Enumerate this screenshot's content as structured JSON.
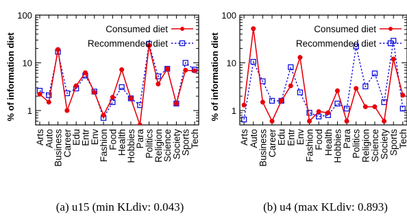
{
  "chart_data": [
    {
      "type": "line",
      "panel": "(a)",
      "caption": "(a)  u15 (min KLdiv: 0.043)",
      "ylabel": "% of information diet",
      "yscale": "log",
      "ylim": [
        0.5,
        100
      ],
      "yticks": [
        "1",
        "10",
        "100"
      ],
      "categories": [
        "Arts",
        "Auto",
        "Business",
        "Career",
        "Edu",
        "Entr",
        "Env",
        "Fashion",
        "Food",
        "Health",
        "Hobbies",
        "Para",
        "Politics",
        "Religion",
        "Science",
        "Society",
        "Sports",
        "Tech"
      ],
      "legend_position": "top-right",
      "series": [
        {
          "name": "Consumed diet",
          "color": "#e8000b",
          "style": "solid",
          "marker": "circle",
          "values": [
            2.2,
            1.5,
            19,
            1.0,
            3.3,
            6.2,
            2.4,
            0.8,
            1.9,
            7.2,
            1.8,
            0.5,
            23,
            3.6,
            7.5,
            1.4,
            7.0,
            6.8
          ]
        },
        {
          "name": "Recommended diet",
          "color": "#1010e0",
          "style": "dashed",
          "marker": "square",
          "values": [
            2.6,
            2.1,
            17,
            2.3,
            2.9,
            5.4,
            2.5,
            0.7,
            1.5,
            3.1,
            1.8,
            1.3,
            25,
            5.2,
            7.5,
            1.4,
            10,
            7.2
          ]
        }
      ]
    },
    {
      "type": "line",
      "panel": "(b)",
      "caption": "(b) u4 (max KLdiv: 0.893)",
      "ylabel": "% of information diet",
      "yscale": "log",
      "ylim": [
        0.5,
        100
      ],
      "yticks": [
        "1",
        "10",
        "100"
      ],
      "categories": [
        "Arts",
        "Auto",
        "Business",
        "Career",
        "Edu",
        "Entr",
        "Env",
        "Fashion",
        "Food",
        "Health",
        "Hobbies",
        "Para",
        "Politics",
        "Religion",
        "Science",
        "Society",
        "Sports",
        "Tech"
      ],
      "legend_position": "top-right",
      "series": [
        {
          "name": "Consumed diet",
          "color": "#e8000b",
          "style": "solid",
          "marker": "circle",
          "values": [
            1.3,
            52,
            1.5,
            0.6,
            1.6,
            3.3,
            13,
            0.6,
            0.95,
            0.9,
            2.6,
            0.6,
            2.9,
            1.2,
            1.2,
            0.6,
            12,
            2.1
          ]
        },
        {
          "name": "Recommended diet",
          "color": "#1010e0",
          "style": "dashed",
          "marker": "square",
          "values": [
            0.65,
            10.5,
            4.1,
            1.6,
            1.6,
            8.1,
            2.4,
            0.9,
            0.75,
            0.8,
            1.4,
            1.1,
            22,
            3.2,
            6.0,
            1.5,
            29,
            1.1
          ]
        }
      ]
    }
  ]
}
